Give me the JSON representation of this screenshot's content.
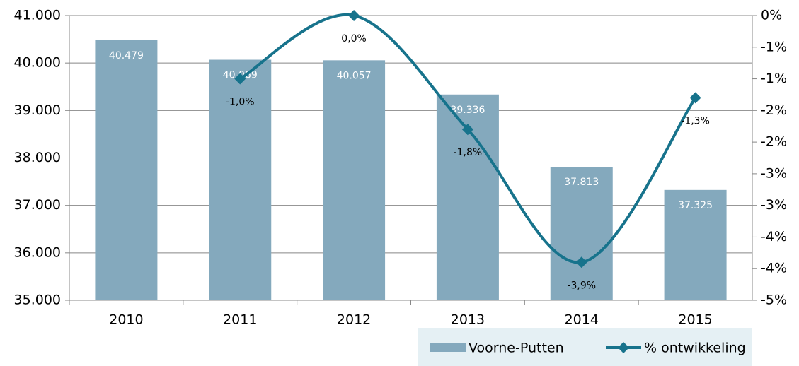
{
  "chart_data": {
    "type": "bar_line",
    "categories": [
      "2010",
      "2011",
      "2012",
      "2013",
      "2014",
      "2015"
    ],
    "series": [
      {
        "name": "Voorne-Putten",
        "type": "bar",
        "color": "#84a9bd",
        "values": [
          40479,
          40069,
          40057,
          39336,
          37813,
          37325
        ],
        "value_labels": [
          "40.479",
          "40.069",
          "40.057",
          "39.336",
          "37.813",
          "37.325"
        ]
      },
      {
        "name": "% ontwikkeling",
        "type": "line",
        "axis": "y2",
        "color": "#17738c",
        "values": [
          null,
          -1.0,
          0.0,
          -1.8,
          -3.9,
          -1.3
        ],
        "value_labels": [
          null,
          "-1,0%",
          "0,0%",
          "-1,8%",
          "-3,9%",
          "-1,3%"
        ]
      }
    ],
    "ylim": [
      35000,
      41000
    ],
    "yticks": [
      {
        "value": 35000,
        "label": "35.000"
      },
      {
        "value": 36000,
        "label": "36.000"
      },
      {
        "value": 37000,
        "label": "37.000"
      },
      {
        "value": 38000,
        "label": "38.000"
      },
      {
        "value": 39000,
        "label": "39.000"
      },
      {
        "value": 40000,
        "label": "40.000"
      },
      {
        "value": 41000,
        "label": "41.000"
      }
    ],
    "y2lim": [
      -4.5,
      0
    ],
    "y2ticks": [
      {
        "value": 0,
        "label": "0%"
      },
      {
        "value": -0.5,
        "label": "-1%"
      },
      {
        "value": -1,
        "label": "-1%"
      },
      {
        "value": -1.5,
        "label": "-2%"
      },
      {
        "value": -2,
        "label": "-2%"
      },
      {
        "value": -2.5,
        "label": "-3%"
      },
      {
        "value": -3,
        "label": "-3%"
      },
      {
        "value": -3.5,
        "label": "-4%"
      },
      {
        "value": -4,
        "label": "-4%"
      },
      {
        "value": -4.5,
        "label": "-5%"
      }
    ],
    "grid": true,
    "legend": "bottom-right"
  }
}
